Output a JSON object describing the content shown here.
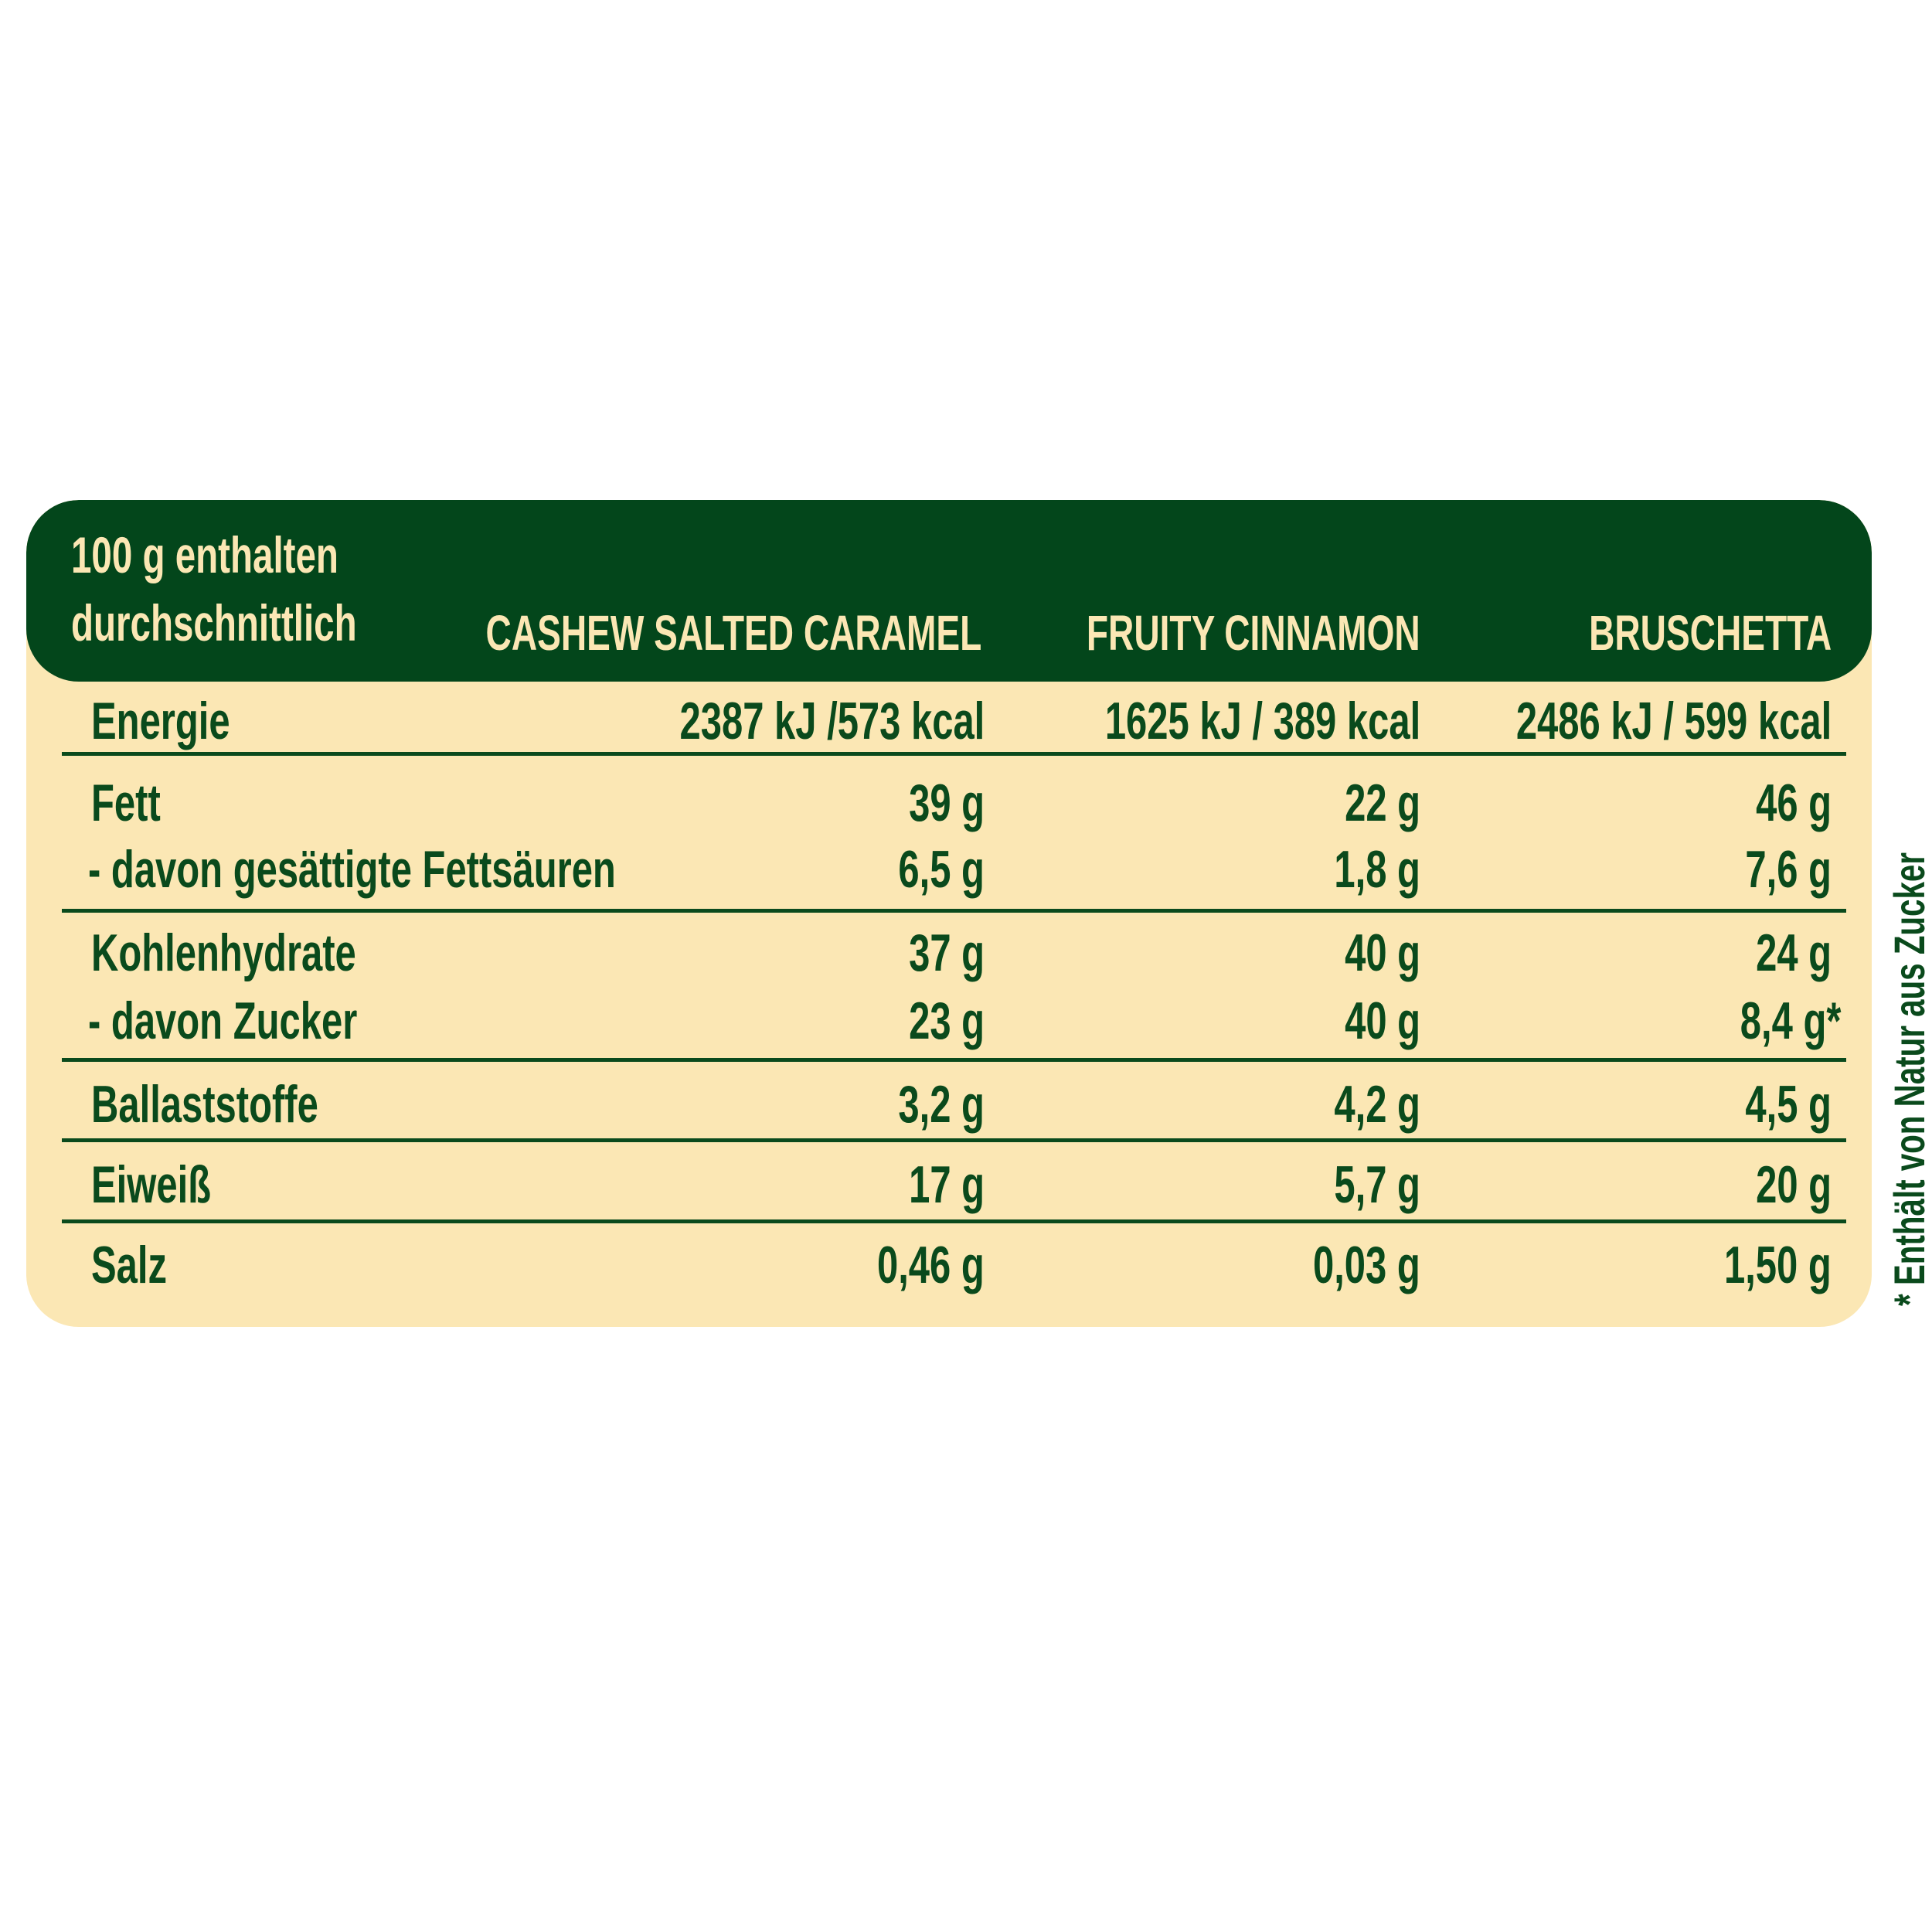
{
  "header": {
    "label_line1": "100 g enthalten",
    "label_line2": "durchschnittlich",
    "columns": [
      "CASHEW SALTED CARAMEL",
      "FRUITY CINNAMON",
      "BRUSCHETTA"
    ]
  },
  "rows": [
    {
      "label": "Energie",
      "values": [
        "2387 kJ /573 kcal",
        "1625 kJ / 389 kcal",
        "2486 kJ / 599 kcal"
      ]
    },
    {
      "label": "Fett",
      "values": [
        "39 g",
        "22 g",
        "46 g"
      ]
    },
    {
      "label": "- davon gesättigte Fettsäuren",
      "values": [
        "6,5 g",
        "1,8 g",
        "7,6 g"
      ]
    },
    {
      "label": "Kohlenhydrate",
      "values": [
        "37 g",
        "40 g",
        "24 g"
      ]
    },
    {
      "label": "- davon Zucker",
      "values": [
        "23 g",
        "40 g",
        "8,4 g*"
      ]
    },
    {
      "label": "Ballaststoffe",
      "values": [
        "3,2 g",
        "4,2 g",
        "4,5 g"
      ]
    },
    {
      "label": "Eiweiß",
      "values": [
        "17 g",
        "5,7 g",
        "20 g"
      ]
    },
    {
      "label": "Salz",
      "values": [
        "0,46 g",
        "0,03 g",
        "1,50 g"
      ]
    }
  ],
  "footnote": "* Enthält von Natur aus Zucker",
  "colors": {
    "header_bg": "#03461b",
    "panel_bg": "#fbe7b4",
    "text": "#0a4a1c"
  }
}
